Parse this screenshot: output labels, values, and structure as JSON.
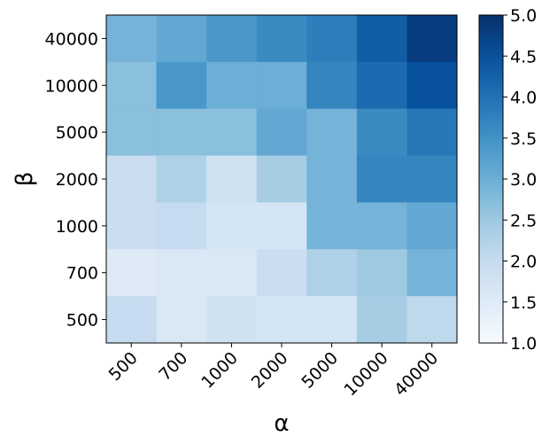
{
  "chart_data": {
    "type": "heatmap",
    "xlabel": "α",
    "ylabel": "β",
    "x_categories": [
      "500",
      "700",
      "1000",
      "2000",
      "5000",
      "10000",
      "40000"
    ],
    "y_categories": [
      "40000",
      "10000",
      "5000",
      "2000",
      "1000",
      "700",
      "500"
    ],
    "values": [
      [
        2.9,
        3.1,
        3.4,
        3.6,
        3.8,
        4.3,
        4.8
      ],
      [
        2.7,
        3.4,
        3.0,
        3.0,
        3.7,
        4.1,
        4.5
      ],
      [
        2.7,
        2.7,
        2.7,
        3.1,
        2.9,
        3.6,
        3.9
      ],
      [
        1.9,
        2.3,
        1.8,
        2.4,
        2.9,
        3.7,
        3.7
      ],
      [
        1.9,
        2.0,
        1.7,
        1.7,
        2.9,
        2.9,
        3.1
      ],
      [
        1.5,
        1.6,
        1.6,
        1.9,
        2.3,
        2.5,
        2.9
      ],
      [
        2.0,
        1.6,
        1.8,
        1.7,
        1.7,
        2.4,
        2.1
      ]
    ],
    "colorbar": {
      "colormap": "Blues",
      "range": [
        1.0,
        5.0
      ],
      "ticks": [
        "1.0",
        "1.5",
        "2.0",
        "2.5",
        "3.0",
        "3.5",
        "4.0",
        "4.5",
        "5.0"
      ]
    }
  }
}
